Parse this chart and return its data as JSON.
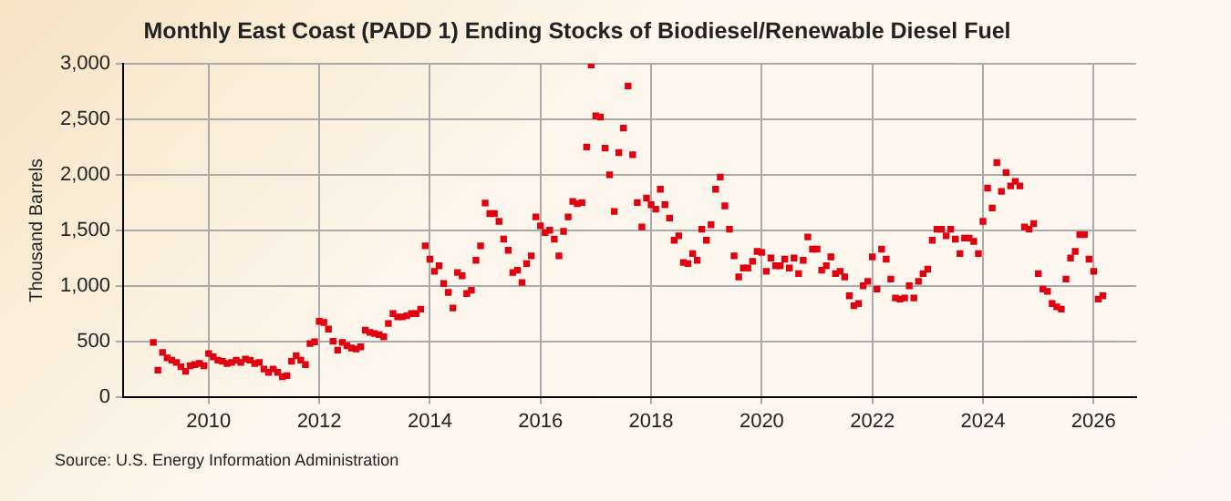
{
  "chart_data": {
    "type": "scatter",
    "title": "Monthly East Coast (PADD 1) Ending Stocks of Biodiesel/Renewable Diesel Fuel",
    "ylabel": "Thousand Barrels",
    "annotations": [
      "Source: U.S. Energy Information Administration"
    ],
    "x": [
      "2009-01",
      "2009-02",
      "2009-03",
      "2009-04",
      "2009-05",
      "2009-06",
      "2009-07",
      "2009-08",
      "2009-09",
      "2009-10",
      "2009-11",
      "2009-12",
      "2010-01",
      "2010-02",
      "2010-03",
      "2010-04",
      "2010-05",
      "2010-06",
      "2010-07",
      "2010-08",
      "2010-09",
      "2010-10",
      "2010-11",
      "2010-12",
      "2011-01",
      "2011-02",
      "2011-03",
      "2011-04",
      "2011-05",
      "2011-06",
      "2011-07",
      "2011-08",
      "2011-09",
      "2011-10",
      "2011-11",
      "2011-12",
      "2012-01",
      "2012-02",
      "2012-03",
      "2012-04",
      "2012-05",
      "2012-06",
      "2012-07",
      "2012-08",
      "2012-09",
      "2012-10",
      "2012-11",
      "2012-12",
      "2013-01",
      "2013-02",
      "2013-03",
      "2013-04",
      "2013-05",
      "2013-06",
      "2013-07",
      "2013-08",
      "2013-09",
      "2013-10",
      "2013-11",
      "2013-12",
      "2014-01",
      "2014-02",
      "2014-03",
      "2014-04",
      "2014-05",
      "2014-06",
      "2014-07",
      "2014-08",
      "2014-09",
      "2014-10",
      "2014-11",
      "2014-12",
      "2015-01",
      "2015-02",
      "2015-03",
      "2015-04",
      "2015-05",
      "2015-06",
      "2015-07",
      "2015-08",
      "2015-09",
      "2015-10",
      "2015-11",
      "2015-12",
      "2016-01",
      "2016-02",
      "2016-03",
      "2016-04",
      "2016-05",
      "2016-06",
      "2016-07",
      "2016-08",
      "2016-09",
      "2016-10",
      "2016-11",
      "2016-12",
      "2017-01",
      "2017-02",
      "2017-03",
      "2017-04",
      "2017-05",
      "2017-06",
      "2017-07",
      "2017-08",
      "2017-09",
      "2017-10",
      "2017-11",
      "2017-12",
      "2018-01",
      "2018-02",
      "2018-03",
      "2018-04",
      "2018-05",
      "2018-06",
      "2018-07",
      "2018-08",
      "2018-09",
      "2018-10",
      "2018-11",
      "2018-12",
      "2019-01",
      "2019-02",
      "2019-03",
      "2019-04",
      "2019-05",
      "2019-06",
      "2019-07",
      "2019-08",
      "2019-09",
      "2019-10",
      "2019-11",
      "2019-12",
      "2020-01",
      "2020-02",
      "2020-03",
      "2020-04",
      "2020-05",
      "2020-06",
      "2020-07",
      "2020-08",
      "2020-09",
      "2020-10",
      "2020-11",
      "2020-12",
      "2021-01",
      "2021-02",
      "2021-03",
      "2021-04",
      "2021-05",
      "2021-06",
      "2021-07",
      "2021-08",
      "2021-09",
      "2021-10",
      "2021-11",
      "2021-12",
      "2022-01",
      "2022-02",
      "2022-03",
      "2022-04",
      "2022-05",
      "2022-06",
      "2022-07",
      "2022-08",
      "2022-09",
      "2022-10",
      "2022-11",
      "2022-12",
      "2023-01",
      "2023-02",
      "2023-03",
      "2023-04",
      "2023-05",
      "2023-06",
      "2023-07",
      "2023-08",
      "2023-09",
      "2023-10",
      "2023-11",
      "2023-12",
      "2024-01",
      "2024-02",
      "2024-03",
      "2024-04",
      "2024-05",
      "2024-06",
      "2024-07",
      "2024-08",
      "2024-09",
      "2024-10",
      "2024-11",
      "2024-12",
      "2025-01",
      "2025-02",
      "2025-03",
      "2025-04",
      "2025-05",
      "2025-06",
      "2025-07",
      "2025-08",
      "2025-09",
      "2025-10",
      "2025-11",
      "2025-12",
      "2026-01",
      "2026-02",
      "2026-03"
    ],
    "series": [
      {
        "color": "#e00010",
        "values": [
          490,
          240,
          400,
          350,
          330,
          310,
          270,
          230,
          280,
          290,
          300,
          280,
          390,
          360,
          330,
          320,
          300,
          310,
          330,
          310,
          340,
          330,
          300,
          310,
          250,
          220,
          250,
          220,
          180,
          190,
          320,
          370,
          330,
          290,
          480,
          495,
          680,
          670,
          610,
          500,
          420,
          490,
          460,
          440,
          430,
          450,
          600,
          580,
          570,
          560,
          540,
          660,
          750,
          720,
          720,
          730,
          750,
          750,
          790,
          1360,
          1240,
          1130,
          1180,
          1020,
          940,
          800,
          1120,
          1090,
          930,
          960,
          1230,
          1360,
          1745,
          1650,
          1650,
          1580,
          1420,
          1320,
          1120,
          1140,
          1030,
          1200,
          1270,
          1620,
          1540,
          1480,
          1500,
          1420,
          1270,
          1490,
          1620,
          1760,
          1740,
          1750,
          2250,
          2990,
          2530,
          2520,
          2240,
          2000,
          1670,
          2200,
          2420,
          2800,
          2180,
          1750,
          1530,
          1790,
          1730,
          1690,
          1870,
          1730,
          1610,
          1410,
          1450,
          1210,
          1200,
          1290,
          1230,
          1510,
          1410,
          1550,
          1870,
          1980,
          1720,
          1510,
          1270,
          1080,
          1160,
          1160,
          1220,
          1310,
          1300,
          1130,
          1250,
          1180,
          1180,
          1240,
          1160,
          1250,
          1110,
          1230,
          1440,
          1330,
          1330,
          1140,
          1180,
          1260,
          1110,
          1130,
          1080,
          910,
          820,
          840,
          1000,
          1040,
          1260,
          970,
          1330,
          1240,
          1060,
          890,
          880,
          890,
          1000,
          890,
          1040,
          1110,
          1150,
          1410,
          1510,
          1510,
          1450,
          1510,
          1420,
          1290,
          1430,
          1430,
          1400,
          1290,
          1580,
          1880,
          1700,
          2110,
          1850,
          2020,
          1900,
          1940,
          1900,
          1530,
          1510,
          1560,
          1110,
          970,
          950,
          840,
          810,
          790,
          1060,
          1250,
          1310,
          1460,
          1460,
          1240,
          1130,
          880,
          910
        ]
      }
    ],
    "xlim": [
      "2008-06-15",
      "2026-10-08"
    ],
    "xticks": [
      "2010",
      "2012",
      "2014",
      "2016",
      "2018",
      "2020",
      "2022",
      "2024",
      "2026"
    ],
    "ylim": [
      0,
      3000
    ],
    "yticks": [
      0,
      {
        "value": 500,
        "label": "500"
      },
      {
        "value": 1000,
        "label": "1,000"
      },
      {
        "value": 1500,
        "label": "1,500"
      },
      {
        "value": 2000,
        "label": "2,000"
      },
      {
        "value": 2500,
        "label": "2,500"
      },
      {
        "value": 3000,
        "label": "3,000"
      }
    ],
    "grid": true,
    "marker": "square",
    "legend": false
  }
}
